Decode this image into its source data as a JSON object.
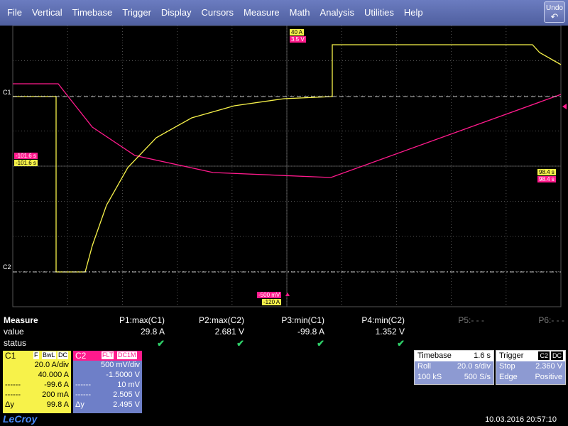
{
  "menu": [
    "File",
    "Vertical",
    "Timebase",
    "Trigger",
    "Display",
    "Cursors",
    "Measure",
    "Math",
    "Analysis",
    "Utilities",
    "Help"
  ],
  "undo_label": "Undo",
  "colors": {
    "c1": "#f7f24a",
    "c2": "#ff1a8c",
    "grid": "#555555"
  },
  "tags": {
    "top_c1": "40 A",
    "top_c2": "3.5 V",
    "left_c2": "-101.6 s",
    "left_c1": "-101.6 s",
    "right_c1": "98.4 s",
    "right_c2": "98.4 s",
    "bottom_c2": "-500 mV",
    "bottom_c1": "-120 A"
  },
  "channel_markers": {
    "c1": "C1",
    "c2": "C2"
  },
  "measure": {
    "title": "Measure",
    "row_value": "value",
    "row_status": "status",
    "params": [
      {
        "name": "P1:max(C1)",
        "value": "29.8 A",
        "status": "✔"
      },
      {
        "name": "P2:max(C2)",
        "value": "2.681 V",
        "status": "✔"
      },
      {
        "name": "P3:min(C1)",
        "value": "-99.8 A",
        "status": "✔"
      },
      {
        "name": "P4:min(C2)",
        "value": "1.352 V",
        "status": "✔"
      },
      {
        "name": "P5:- - -",
        "value": "",
        "status": ""
      },
      {
        "name": "P6:- - -",
        "value": "",
        "status": ""
      }
    ]
  },
  "c1": {
    "label": "C1",
    "flag1": "F",
    "flag2": "BwL",
    "flag3": "DC",
    "vdiv": "20.0 A/div",
    "offset": "40.000 A",
    "r1_label": "------",
    "r1_val": "-99.6 A",
    "r2_label": "------",
    "r2_val": "200 mA",
    "dy_label": "Δy",
    "dy_val": "99.8 A"
  },
  "c2": {
    "label": "C2",
    "flag1": "FLT",
    "flag2": "DC1M",
    "vdiv": "500 mV/div",
    "offset": "-1.5000 V",
    "r1_label": "------",
    "r1_val": "10 mV",
    "r2_label": "------",
    "r2_val": "2.505 V",
    "dy_label": "Δy",
    "dy_val": "2.495 V"
  },
  "timebase": {
    "title": "Timebase",
    "delay": "1.6 s",
    "mode": "Roll",
    "tdiv": "20.0 s/div",
    "samples": "100 kS",
    "rate": "500 S/s"
  },
  "trigger": {
    "title": "Trigger",
    "ch": "C2",
    "coupling": "DC",
    "mode": "Stop",
    "level": "2.360 V",
    "type": "Edge",
    "slope": "Positive"
  },
  "brand": "LeCroy",
  "datetime": "10.03.2016 20:57:10"
}
